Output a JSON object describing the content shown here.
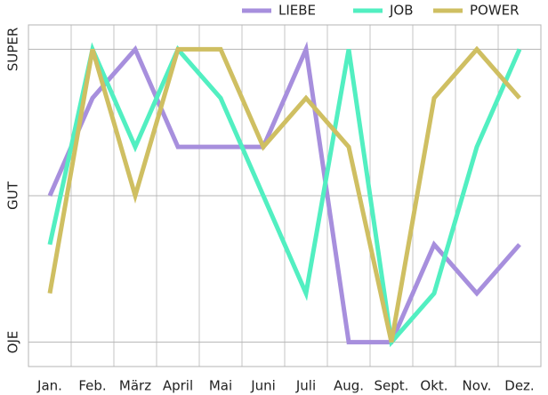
{
  "chart_data": {
    "type": "line",
    "categories": [
      "Jan.",
      "Feb.",
      "März",
      "April",
      "Mai",
      "Juni",
      "Juli",
      "Aug.",
      "Sept.",
      "Okt.",
      "Nov.",
      "Dez."
    ],
    "series": [
      {
        "name": "LIEBE",
        "color": "#a78fdd",
        "values": [
          0,
          2,
          3,
          1,
          1,
          1,
          3,
          -3,
          -3,
          -1,
          -2,
          -1
        ]
      },
      {
        "name": "JOB",
        "color": "#52efc1",
        "values": [
          -1,
          3,
          1,
          3,
          2,
          0,
          -2,
          3,
          -3,
          -2,
          1,
          3
        ]
      },
      {
        "name": "POWER",
        "color": "#cfbf62",
        "values": [
          -2,
          3,
          0,
          3,
          3,
          1,
          2,
          1,
          -3,
          2,
          3,
          2
        ]
      }
    ],
    "ylim": [
      -3.5,
      3.5
    ],
    "yticks": [
      {
        "value": -3,
        "label": "OJE"
      },
      {
        "value": 0,
        "label": "GUT"
      },
      {
        "value": 3,
        "label": "SUPER"
      }
    ],
    "grid": true,
    "legend": "top-right"
  }
}
